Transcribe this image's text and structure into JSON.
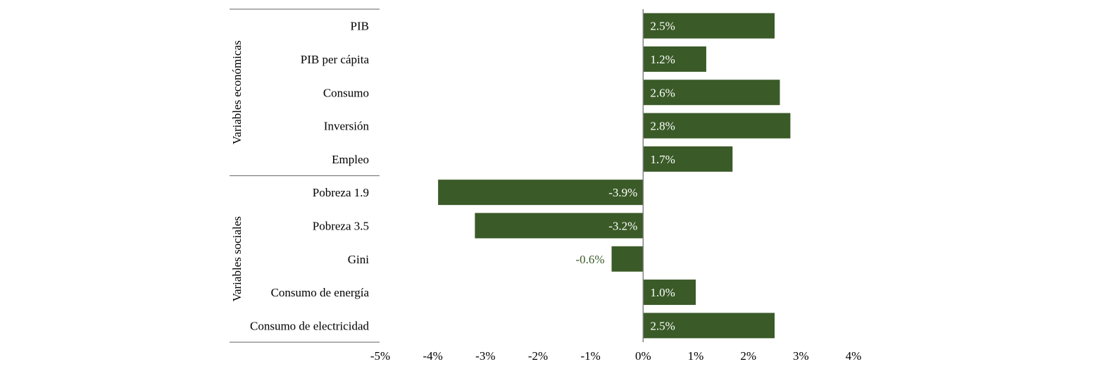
{
  "chart_data": {
    "type": "bar",
    "orientation": "horizontal",
    "title": "",
    "xlabel": "",
    "ylabel": "",
    "xlim": [
      -5,
      4
    ],
    "x_ticks": [
      -5,
      -4,
      -3,
      -2,
      -1,
      0,
      1,
      2,
      3,
      4
    ],
    "x_tick_labels": [
      "-5%",
      "-4%",
      "-3%",
      "-2%",
      "-1%",
      "0%",
      "1%",
      "2%",
      "3%",
      "4%"
    ],
    "grid": false,
    "legend": "none",
    "colors": {
      "bar": "#3a5a27",
      "label_inside": "#ffffff",
      "label_outside": "#3a5a27",
      "text": "#000000",
      "lines": "#808080"
    },
    "groups": [
      {
        "label": "Variables económicas",
        "categories": [
          "PIB",
          "PIB per cápita",
          "Consumo",
          "Inversión",
          "Empleo"
        ],
        "values": [
          2.5,
          1.2,
          2.6,
          2.8,
          1.7
        ],
        "value_labels": [
          "2.5%",
          "1.2%",
          "2.6%",
          "2.8%",
          "1.7%"
        ]
      },
      {
        "label": "Variables sociales",
        "categories": [
          "Pobreza 1.9",
          "Pobreza 3.5",
          "Gini",
          "Consumo de energía ",
          "Consumo de electricidad"
        ],
        "values": [
          -3.9,
          -3.2,
          -0.6,
          1.0,
          2.5
        ],
        "value_labels": [
          "-3.9%",
          "-3.2%",
          "-0.6%",
          "1.0%",
          "2.5%"
        ]
      }
    ]
  }
}
